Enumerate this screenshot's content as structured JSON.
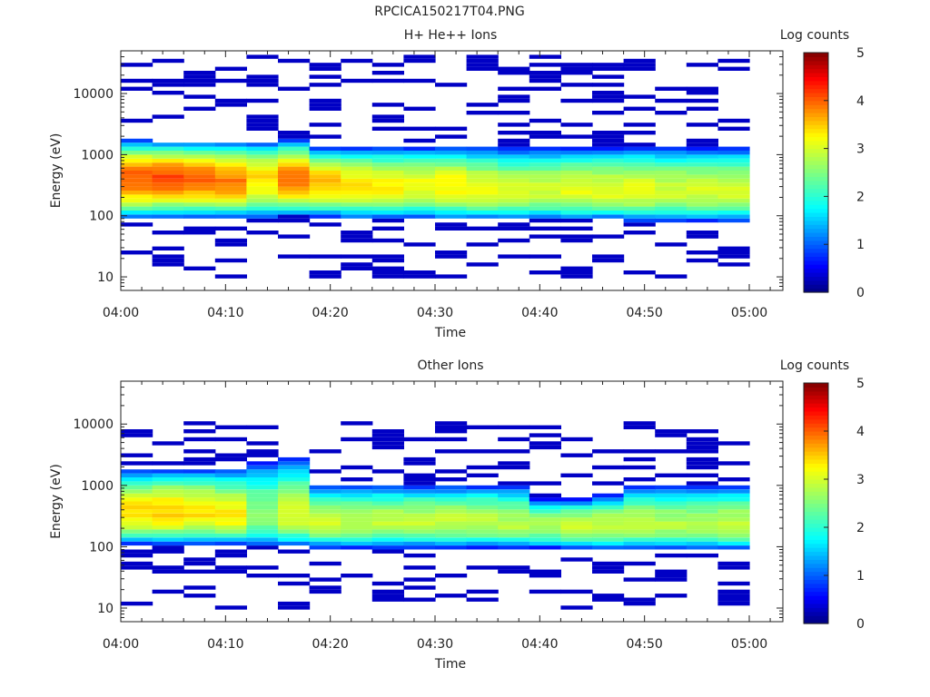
{
  "page_title": "RPCICA150217T04.PNG",
  "colors": {
    "colormap": [
      "#00007f",
      "#0000ff",
      "#00ffff",
      "#ffff00",
      "#ff0000",
      "#7f0000"
    ]
  },
  "chart_data": [
    {
      "type": "heatmap",
      "title": "H+ He++ Ions",
      "xlabel": "Time",
      "ylabel": "Energy (eV)",
      "y_scale": "log",
      "ylim": [
        6,
        50000
      ],
      "x_tick_labels": [
        "04:00",
        "04:10",
        "04:20",
        "04:30",
        "04:40",
        "04:50",
        "05:00"
      ],
      "y_tick_labels": [
        "10",
        "100",
        "1000",
        "10000"
      ],
      "colorbar": {
        "label": "Log counts",
        "range": [
          0,
          5
        ],
        "tick_labels": [
          "0",
          "1",
          "2",
          "3",
          "4",
          "5"
        ]
      },
      "time_bins": [
        "04:00",
        "04:03",
        "04:06",
        "04:09",
        "04:12",
        "04:15",
        "04:18",
        "04:21",
        "04:24",
        "04:27",
        "04:30",
        "04:33",
        "04:36",
        "04:39",
        "04:42",
        "04:45",
        "04:48",
        "04:51",
        "04:54",
        "04:57"
      ],
      "core_band": {
        "peak_energy_eV": [
          400,
          400,
          400,
          350,
          400,
          400,
          350,
          300,
          300,
          300,
          300,
          250,
          250,
          250,
          250,
          250,
          250,
          250,
          250,
          250
        ],
        "peak_log_counts": [
          4.0,
          4.1,
          4.0,
          3.9,
          3.4,
          3.9,
          3.6,
          3.4,
          3.3,
          3.2,
          3.3,
          3.2,
          3.0,
          3.0,
          3.1,
          3.1,
          3.1,
          3.0,
          3.0,
          3.0
        ],
        "low_edge_eV": [
          90,
          95,
          95,
          95,
          90,
          100,
          95,
          90,
          90,
          90,
          85,
          85,
          85,
          85,
          85,
          85,
          80,
          80,
          80,
          80
        ],
        "high_edge_eV": [
          1700,
          1600,
          1600,
          1600,
          1600,
          1700,
          1300,
          1300,
          1300,
          1300,
          1300,
          1300,
          1300,
          1300,
          1300,
          1300,
          1300,
          1300,
          1300,
          1300
        ]
      },
      "sparse_counts_level": 0.3,
      "sparse_counts_energy_range_eV": [
        9,
        45000
      ]
    },
    {
      "type": "heatmap",
      "title": "Other Ions",
      "xlabel": "Time",
      "ylabel": "Energy (eV)",
      "y_scale": "log",
      "ylim": [
        6,
        50000
      ],
      "x_tick_labels": [
        "04:00",
        "04:10",
        "04:20",
        "04:30",
        "04:40",
        "04:50",
        "05:00"
      ],
      "y_tick_labels": [
        "10",
        "100",
        "1000",
        "10000"
      ],
      "colorbar": {
        "label": "Log counts",
        "range": [
          0,
          5
        ],
        "tick_labels": [
          "0",
          "1",
          "2",
          "3",
          "4",
          "5"
        ]
      },
      "time_bins": [
        "04:00",
        "04:03",
        "04:06",
        "04:09",
        "04:12",
        "04:15",
        "04:18",
        "04:21",
        "04:24",
        "04:27",
        "04:30",
        "04:33",
        "04:36",
        "04:39",
        "04:42",
        "04:45",
        "04:48",
        "04:51",
        "04:54",
        "04:57"
      ],
      "core_band": {
        "peak_energy_eV": [
          350,
          350,
          350,
          300,
          300,
          300,
          250,
          250,
          250,
          250,
          250,
          250,
          220,
          220,
          220,
          220,
          220,
          220,
          220,
          220
        ],
        "peak_log_counts": [
          3.4,
          3.5,
          3.4,
          3.3,
          2.6,
          3.0,
          3.0,
          2.9,
          2.9,
          2.9,
          2.9,
          2.9,
          2.8,
          2.8,
          2.9,
          2.9,
          2.9,
          2.8,
          2.8,
          2.9
        ],
        "low_edge_eV": [
          110,
          110,
          110,
          110,
          100,
          100,
          95,
          95,
          95,
          95,
          95,
          95,
          95,
          95,
          90,
          90,
          90,
          90,
          90,
          90
        ],
        "high_edge_eV": [
          1800,
          1800,
          1800,
          1800,
          2500,
          2700,
          1000,
          1000,
          1000,
          1000,
          1000,
          1000,
          1000,
          600,
          600,
          700,
          1000,
          1000,
          1000,
          1000
        ]
      },
      "sparse_counts_level": 0.3,
      "sparse_counts_energy_range_eV": [
        9,
        11000
      ]
    }
  ]
}
